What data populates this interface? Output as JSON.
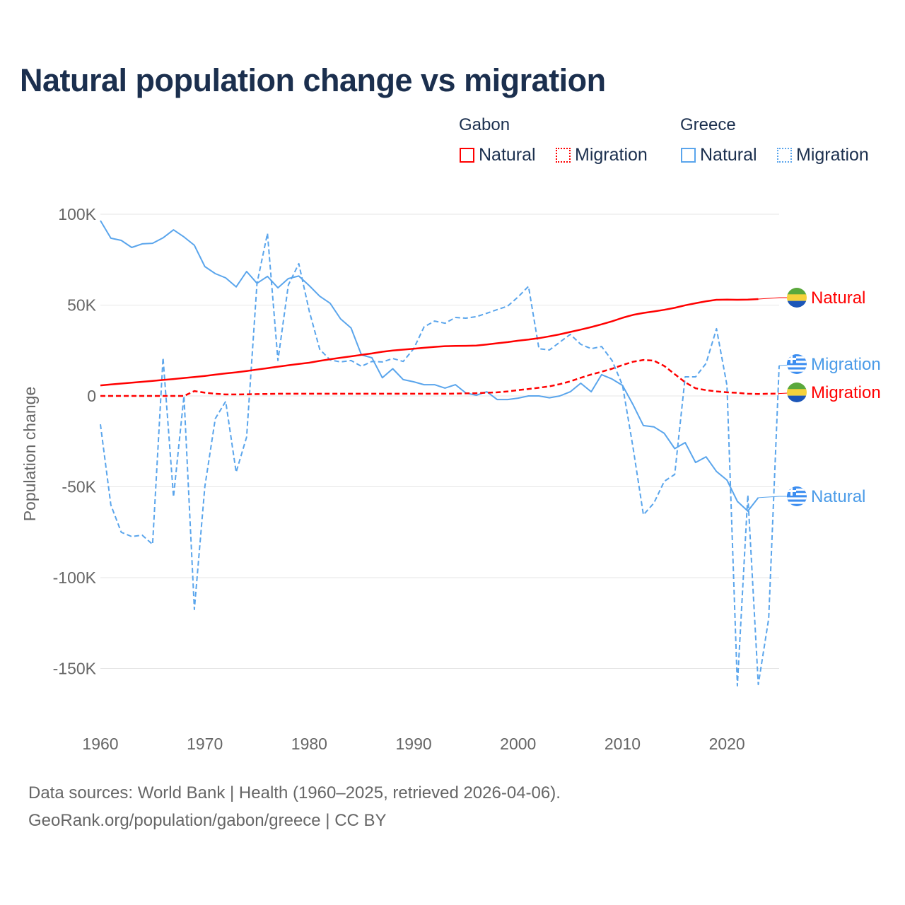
{
  "title": "Natural population change vs migration",
  "legend": {
    "groups": [
      {
        "name": "Gabon",
        "items": [
          {
            "label": "Natural",
            "style": "solid",
            "color": "#ff0000"
          },
          {
            "label": "Migration",
            "style": "dotted",
            "color": "#ff0000"
          }
        ]
      },
      {
        "name": "Greece",
        "items": [
          {
            "label": "Natural",
            "style": "solid",
            "color": "#5aa5ec"
          },
          {
            "label": "Migration",
            "style": "dotted",
            "color": "#5aa5ec"
          }
        ]
      }
    ]
  },
  "footer": {
    "line1": "Data sources: World Bank | Health (1960–2025, retrieved 2026-04-06).",
    "line2": "GeoRank.org/population/gabon/greece | CC BY"
  },
  "chart_data": {
    "type": "line",
    "title": "Natural population change vs migration",
    "xlabel": "",
    "ylabel": "Population change",
    "xlim": [
      1960,
      2025
    ],
    "ylim": [
      -165,
      105
    ],
    "unit": "thousands",
    "x_ticks": [
      "1960",
      "1970",
      "1980",
      "1990",
      "2000",
      "2010",
      "2020"
    ],
    "y_ticks": [
      {
        "value": 100,
        "label": "100K"
      },
      {
        "value": 50,
        "label": "50K"
      },
      {
        "value": 0,
        "label": "0"
      },
      {
        "value": -50,
        "label": "-50K"
      },
      {
        "value": -100,
        "label": "-100K"
      },
      {
        "value": -150,
        "label": "-150K"
      }
    ],
    "grid": true,
    "legend_position": "top-right",
    "series": [
      {
        "name": "Gabon Natural",
        "end_label": "Natural",
        "country": "gabon",
        "color": "#ff0000",
        "dash": false,
        "start": 1960,
        "values": [
          5.8,
          6.3,
          6.8,
          7.3,
          7.8,
          8.3,
          8.8,
          9.3,
          9.9,
          10.4,
          11.0,
          11.7,
          12.4,
          13.0,
          13.7,
          14.5,
          15.3,
          16.1,
          16.9,
          17.6,
          18.3,
          19.3,
          20.2,
          21.0,
          21.8,
          22.6,
          23.4,
          24.3,
          25.0,
          25.5,
          26.0,
          26.5,
          27.0,
          27.4,
          27.5,
          27.6,
          27.7,
          28.3,
          29.0,
          29.6,
          30.4,
          31.0,
          31.8,
          32.8,
          33.9,
          35.2,
          36.5,
          37.9,
          39.4,
          41.1,
          43.0,
          44.6,
          45.7,
          46.5,
          47.4,
          48.5,
          49.9,
          51.0,
          52.1,
          52.9,
          53.0,
          52.9,
          53.0,
          53.3
        ]
      },
      {
        "name": "Gabon Migration",
        "end_label": "Migration",
        "country": "gabon",
        "color": "#ff0000",
        "dash": true,
        "start": 1960,
        "values": [
          0,
          0,
          0,
          0,
          0,
          0,
          0,
          0,
          0,
          2.7,
          1.8,
          1.2,
          0.8,
          0.8,
          0.9,
          1,
          1.1,
          1.2,
          1.2,
          1.2,
          1.2,
          1.2,
          1.2,
          1.2,
          1.2,
          1.2,
          1.2,
          1.2,
          1.2,
          1.2,
          1.2,
          1.2,
          1.2,
          1.2,
          1.3,
          1.4,
          1.5,
          1.8,
          2.0,
          2.5,
          3.2,
          3.8,
          4.5,
          5.3,
          6.5,
          8.0,
          10.0,
          11.8,
          13.3,
          15.0,
          17.0,
          18.8,
          19.8,
          19.4,
          16.5,
          12.0,
          7.5,
          4.2,
          3.2,
          2.5,
          2.0,
          1.7,
          1.2,
          1.1,
          1.2,
          1.3
        ]
      },
      {
        "name": "Greece Natural",
        "end_label": "Natural",
        "country": "greece",
        "color": "#5aa5ec",
        "dash": false,
        "start": 1960,
        "values": [
          96.5,
          86.8,
          85.6,
          81.7,
          83.7,
          84,
          87,
          91.4,
          87.5,
          82.9,
          71.2,
          67.3,
          65,
          60,
          68.5,
          62,
          65.8,
          59.5,
          64.6,
          66,
          60.7,
          54.9,
          51,
          42.4,
          37.4,
          22.6,
          21,
          10,
          15,
          9,
          7.8,
          6.2,
          6.2,
          4.3,
          6.2,
          1.6,
          0.4,
          2.3,
          -2,
          -2,
          -1.2,
          0,
          0,
          -1,
          0,
          2.3,
          7,
          2.3,
          11.7,
          9.3,
          5.8,
          -4.7,
          -16.3,
          -17,
          -20.6,
          -29,
          -25.7,
          -36.6,
          -33.5,
          -41.6,
          -46.3,
          -58,
          -63.4,
          -56
        ]
      },
      {
        "name": "Greece Migration",
        "end_label": "Migration",
        "country": "greece",
        "color": "#5aa5ec",
        "dash": true,
        "start": 1960,
        "values": [
          -15.6,
          -60,
          -75,
          -77.4,
          -76.6,
          -81.7,
          21,
          -55.6,
          0,
          -117.5,
          -50,
          -12.5,
          -3,
          -42,
          -22.6,
          62,
          89.5,
          19.5,
          61,
          72.8,
          46.7,
          25.7,
          19.8,
          18.7,
          19.5,
          16.3,
          19,
          18.7,
          20.6,
          19,
          26,
          38,
          41.2,
          40,
          43.2,
          42.8,
          43.6,
          45.5,
          47.5,
          49.4,
          54.5,
          60.3,
          26,
          25.3,
          29.6,
          33.9,
          28.4,
          26,
          27.2,
          19.5,
          5.8,
          -28,
          -65.4,
          -59,
          -47,
          -43.2,
          10.5,
          10.5,
          17.9,
          37,
          5.8,
          -159.5,
          -54.5,
          -158.8,
          -122.6,
          16.7
        ]
      }
    ]
  }
}
